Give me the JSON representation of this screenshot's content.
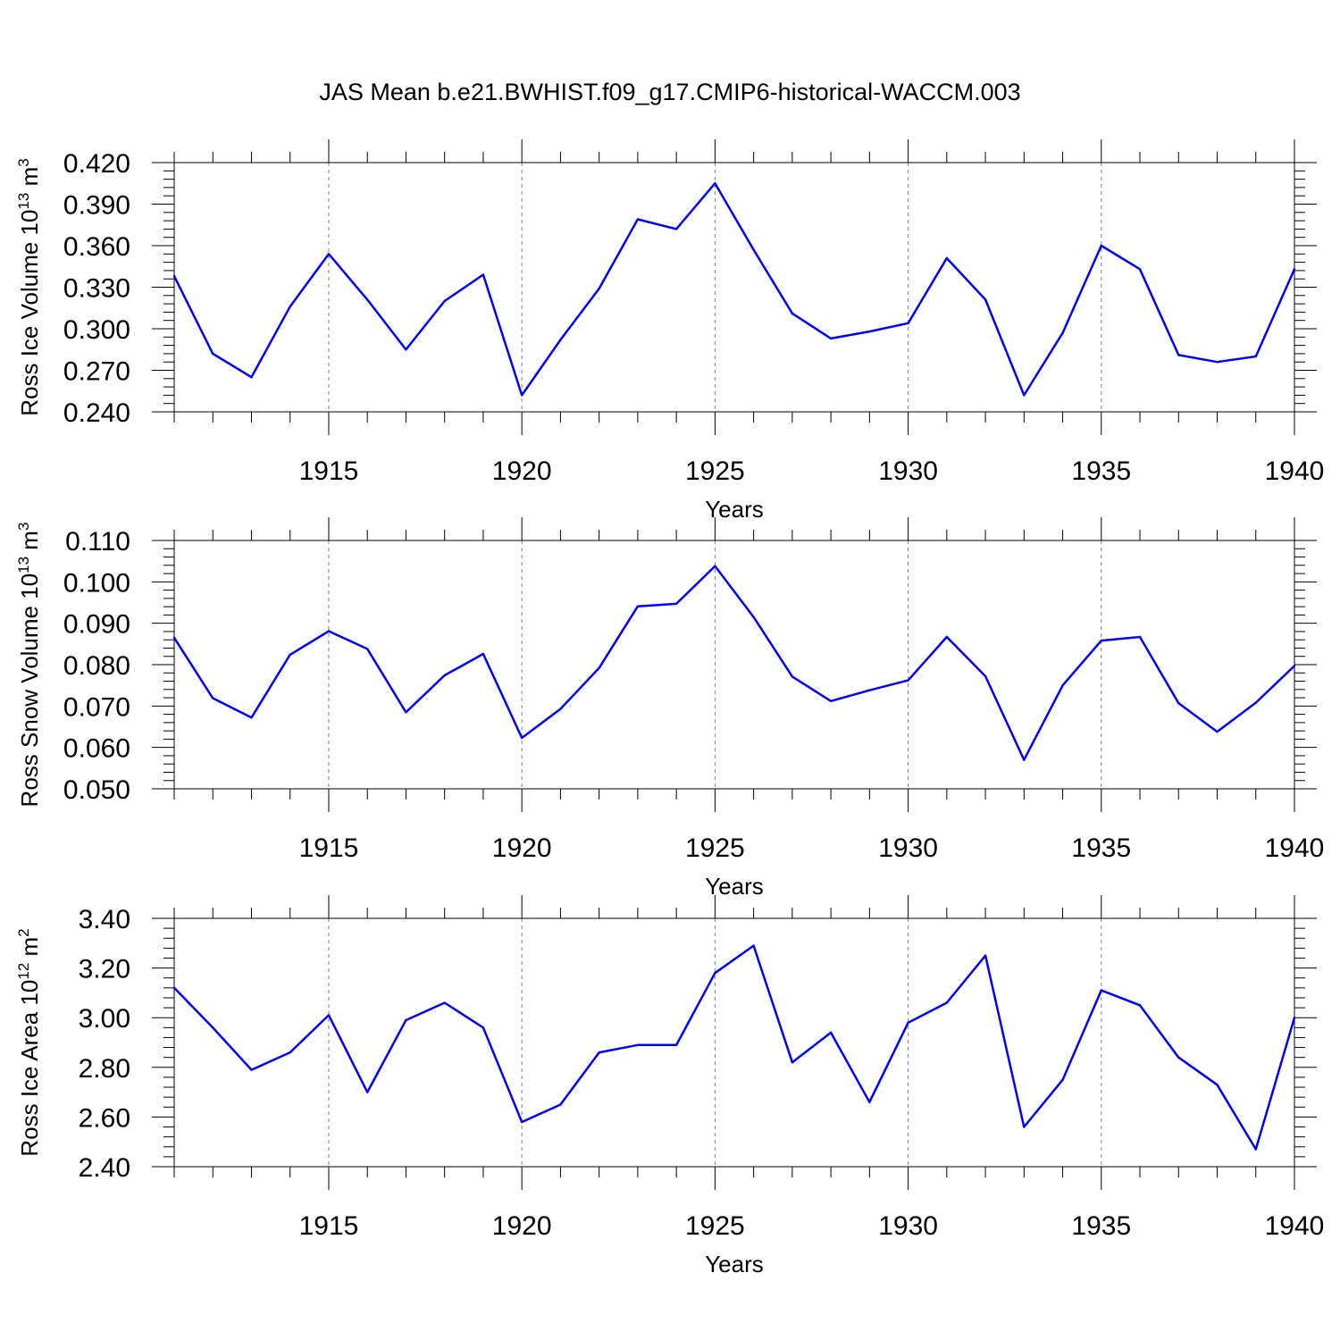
{
  "title": "JAS Mean b.e21.BWHIST.f09_g17.CMIP6-historical-WACCM.003",
  "colors": {
    "line": "#0000ff",
    "axis": "#000000",
    "grid": "#808080"
  },
  "chart_data": [
    {
      "type": "line",
      "xlabel": "Years",
      "ylabel": {
        "text": "Ross Ice Volume 10",
        "exp": "13",
        "unit": " m",
        "unit_exp": "3"
      },
      "x_range": [
        1911,
        1940
      ],
      "x_ticks": [
        1915,
        1920,
        1925,
        1930,
        1935,
        1940
      ],
      "x_tick_labels": [
        "1915",
        "1920",
        "1925",
        "1930",
        "1935",
        "1940"
      ],
      "ylim": [
        0.24,
        0.42
      ],
      "y_ticks": [
        0.24,
        0.27,
        0.3,
        0.33,
        0.36,
        0.39,
        0.42
      ],
      "y_tick_labels": [
        "0.240",
        "0.270",
        "0.300",
        "0.330",
        "0.360",
        "0.390",
        "0.420"
      ],
      "grid": "dashed vertical at major x ticks",
      "series": [
        {
          "x": [
            1911,
            1912,
            1913,
            1914,
            1915,
            1916,
            1917,
            1918,
            1919,
            1920,
            1921,
            1922,
            1923,
            1924,
            1925,
            1926,
            1927,
            1928,
            1929,
            1930,
            1931,
            1932,
            1933,
            1934,
            1935,
            1936,
            1937,
            1938,
            1939,
            1940
          ],
          "values": [
            0.338,
            0.282,
            0.265,
            0.316,
            0.354,
            0.321,
            0.285,
            0.32,
            0.339,
            0.252,
            0.292,
            0.329,
            0.379,
            0.372,
            0.405,
            0.357,
            0.311,
            0.293,
            0.298,
            0.304,
            0.351,
            0.321,
            0.252,
            0.297,
            0.36,
            0.343,
            0.281,
            0.276,
            0.28,
            0.343
          ]
        }
      ]
    },
    {
      "type": "line",
      "xlabel": "Years",
      "ylabel": {
        "text": "Ross Snow Volume 10",
        "exp": "13",
        "unit": " m",
        "unit_exp": "3"
      },
      "x_range": [
        1911,
        1940
      ],
      "x_ticks": [
        1915,
        1920,
        1925,
        1930,
        1935,
        1940
      ],
      "x_tick_labels": [
        "1915",
        "1920",
        "1925",
        "1930",
        "1935",
        "1940"
      ],
      "ylim": [
        0.05,
        0.11
      ],
      "y_ticks": [
        0.05,
        0.06,
        0.07,
        0.08,
        0.09,
        0.1,
        0.11
      ],
      "y_tick_labels": [
        "0.050",
        "0.060",
        "0.070",
        "0.080",
        "0.090",
        "0.100",
        "0.110"
      ],
      "grid": "dashed vertical at major x ticks",
      "series": [
        {
          "x": [
            1911,
            1912,
            1913,
            1914,
            1915,
            1916,
            1917,
            1918,
            1919,
            1920,
            1921,
            1922,
            1923,
            1924,
            1925,
            1926,
            1927,
            1928,
            1929,
            1930,
            1931,
            1932,
            1933,
            1934,
            1935,
            1936,
            1937,
            1938,
            1939,
            1940
          ],
          "values": [
            0.0865,
            0.0719,
            0.0672,
            0.0824,
            0.0881,
            0.0838,
            0.0685,
            0.0774,
            0.0826,
            0.0623,
            0.0693,
            0.0792,
            0.0941,
            0.0947,
            0.1038,
            0.0915,
            0.0771,
            0.0712,
            0.0738,
            0.0762,
            0.0867,
            0.0772,
            0.057,
            0.075,
            0.0858,
            0.0867,
            0.0707,
            0.0638,
            0.0708,
            0.0797
          ]
        }
      ]
    },
    {
      "type": "line",
      "xlabel": "Years",
      "ylabel": {
        "text": "Ross Ice Area 10",
        "exp": "12",
        "unit": " m",
        "unit_exp": "2"
      },
      "x_range": [
        1911,
        1940
      ],
      "x_ticks": [
        1915,
        1920,
        1925,
        1930,
        1935,
        1940
      ],
      "x_tick_labels": [
        "1915",
        "1920",
        "1925",
        "1930",
        "1935",
        "1940"
      ],
      "ylim": [
        2.4,
        3.4
      ],
      "y_ticks": [
        2.4,
        2.6,
        2.8,
        3.0,
        3.2,
        3.4
      ],
      "y_tick_labels": [
        "2.40",
        "2.60",
        "2.80",
        "3.00",
        "3.20",
        "3.40"
      ],
      "grid": "dashed vertical at major x ticks",
      "series": [
        {
          "x": [
            1911,
            1912,
            1913,
            1914,
            1915,
            1916,
            1917,
            1918,
            1919,
            1920,
            1921,
            1922,
            1923,
            1924,
            1925,
            1926,
            1927,
            1928,
            1929,
            1930,
            1931,
            1932,
            1933,
            1934,
            1935,
            1936,
            1937,
            1938,
            1939,
            1940
          ],
          "values": [
            3.12,
            2.96,
            2.79,
            2.86,
            3.01,
            2.7,
            2.99,
            3.06,
            2.96,
            2.58,
            2.65,
            2.86,
            2.89,
            2.89,
            3.18,
            3.29,
            2.82,
            2.94,
            2.66,
            2.98,
            3.06,
            3.25,
            2.56,
            2.75,
            3.11,
            3.05,
            2.84,
            2.73,
            2.47,
            3.0
          ]
        }
      ]
    }
  ]
}
